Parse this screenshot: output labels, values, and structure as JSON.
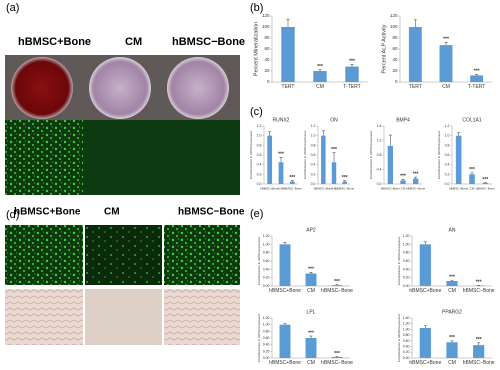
{
  "labels": {
    "a": "(a)",
    "b": "(b)",
    "c": "(c)",
    "d": "(d)",
    "e": "(e)"
  },
  "image_headers": {
    "a": [
      "hBMSC+Bone",
      "CM",
      "hBMSC−Bone"
    ],
    "d": [
      "hBMSC+Bone",
      "CM",
      "hBMSC−Bone"
    ]
  },
  "chart_data": [
    {
      "type": "bar",
      "ylabel": "Percent Mineralization",
      "categories": [
        "TERT",
        "CM",
        "T-TERT"
      ],
      "values": [
        100,
        20,
        28
      ],
      "errors": [
        14,
        2,
        4
      ],
      "sig": [
        null,
        "***",
        "***"
      ],
      "color": "#5b9bd5",
      "ylim": [
        0,
        120
      ],
      "yticks": [
        0,
        20,
        40,
        60,
        80,
        100,
        120
      ]
    },
    {
      "type": "bar",
      "ylabel": "Percent ALP Activity",
      "categories": [
        "TERT",
        "CM",
        "T-TERT"
      ],
      "values": [
        100,
        67,
        12
      ],
      "errors": [
        13,
        5,
        2
      ],
      "sig": [
        null,
        "***",
        "***"
      ],
      "color": "#5b9bd5",
      "ylim": [
        0,
        120
      ],
      "yticks": [
        0,
        20,
        40,
        60,
        80,
        100,
        120
      ]
    },
    {
      "type": "bar",
      "title": "RUNX2",
      "ylabel": "Fold Reduction in mRNA Expression",
      "categories": [
        "hBMSC+Bone",
        "CM",
        "hBMSC−Bone"
      ],
      "values": [
        1.0,
        0.45,
        0.05
      ],
      "errors": [
        0.08,
        0.1,
        0.02
      ],
      "sig": [
        null,
        "***",
        "***"
      ],
      "color": "#5b9bd5",
      "ylim": [
        0,
        1.2
      ],
      "yticks": [
        {
          "value": 0,
          "label": "0.0"
        },
        {
          "value": 0.2,
          "label": "0.2"
        },
        {
          "value": 0.4,
          "label": "0.4"
        },
        {
          "value": 0.6,
          "label": "0.6"
        },
        {
          "value": 0.8,
          "label": "0.8"
        },
        {
          "value": 1.0,
          "label": "1.0"
        },
        {
          "value": 1.2,
          "label": "1.2"
        }
      ]
    },
    {
      "type": "bar",
      "title": "ON",
      "ylabel": "Fold Reduction in mRNA Expression",
      "categories": [
        "hBMSC+Bone",
        "CM",
        "hBMSC−Bone"
      ],
      "values": [
        1.0,
        0.45,
        0.05
      ],
      "errors": [
        0.1,
        0.2,
        0.02
      ],
      "sig": [
        null,
        "***",
        "***"
      ],
      "color": "#5b9bd5",
      "ylim": [
        0,
        1.2
      ],
      "yticks": [
        {
          "value": 0,
          "label": "0.0"
        },
        {
          "value": 0.2,
          "label": "0.2"
        },
        {
          "value": 0.4,
          "label": "0.4"
        },
        {
          "value": 0.6,
          "label": "0.6"
        },
        {
          "value": 0.8,
          "label": "0.8"
        },
        {
          "value": 1.0,
          "label": "1.0"
        },
        {
          "value": 1.2,
          "label": "1.2"
        }
      ]
    },
    {
      "type": "bar",
      "title": "BMP4",
      "ylabel": "Fold Reduction in mRNA Expression",
      "categories": [
        "hBMSC+Bone",
        "CM",
        "hBMSC−Bone"
      ],
      "values": [
        1.05,
        0.1,
        0.15
      ],
      "errors": [
        0.3,
        0.03,
        0.04
      ],
      "sig": [
        null,
        "***",
        "***"
      ],
      "color": "#5b9bd5",
      "ylim": [
        0,
        1.6
      ],
      "yticks": [
        {
          "value": 0,
          "label": "0.0"
        },
        {
          "value": 0.4,
          "label": "0.4"
        },
        {
          "value": 0.8,
          "label": "0.8"
        },
        {
          "value": 1.2,
          "label": "1.2"
        },
        {
          "value": 1.6,
          "label": "1.6"
        }
      ]
    },
    {
      "type": "bar",
      "title": "COL1A1",
      "ylabel": "Fold Reduction in mRNA Expression",
      "categories": [
        "hBMSC+Bone",
        "CM",
        "hBMSC−Bone"
      ],
      "values": [
        1.0,
        0.2,
        0.02
      ],
      "errors": [
        0.06,
        0.03,
        0.01
      ],
      "sig": [
        null,
        "***",
        "***"
      ],
      "color": "#5b9bd5",
      "ylim": [
        0,
        1.2
      ],
      "yticks": [
        {
          "value": 0,
          "label": "0.0"
        },
        {
          "value": 0.2,
          "label": "0.2"
        },
        {
          "value": 0.4,
          "label": "0.4"
        },
        {
          "value": 0.6,
          "label": "0.6"
        },
        {
          "value": 0.8,
          "label": "0.8"
        },
        {
          "value": 1.0,
          "label": "1.0"
        },
        {
          "value": 1.2,
          "label": "1.2"
        }
      ]
    },
    {
      "type": "bar",
      "title": "AP2",
      "ylabel": "Fold Reduction in mRNA Expression",
      "categories": [
        "hBMSC+Bone",
        "CM",
        "hBMSC−Bone"
      ],
      "values": [
        1.0,
        0.3,
        0.02
      ],
      "errors": [
        0.05,
        0.03,
        0.01
      ],
      "sig": [
        null,
        "***",
        "***"
      ],
      "color": "#5b9bd5",
      "ylim": [
        0,
        1.2
      ],
      "yticks": [
        {
          "value": 0,
          "label": "0.00"
        },
        {
          "value": 0.2,
          "label": "0.20"
        },
        {
          "value": 0.4,
          "label": "0.40"
        },
        {
          "value": 0.6,
          "label": "0.60"
        },
        {
          "value": 0.8,
          "label": "0.80"
        },
        {
          "value": 1.0,
          "label": "1.00"
        },
        {
          "value": 1.2,
          "label": "1.20"
        }
      ]
    },
    {
      "type": "bar",
      "title": "AN",
      "ylabel": "Fold Reduction in mRNA Expression",
      "categories": [
        "hBMSC+Bone",
        "CM",
        "hBMSC−Bone"
      ],
      "values": [
        1.0,
        0.12,
        0.01
      ],
      "errors": [
        0.06,
        0.02,
        0.005
      ],
      "sig": [
        null,
        "***",
        "***"
      ],
      "color": "#5b9bd5",
      "ylim": [
        0,
        1.2
      ],
      "yticks": [
        {
          "value": 0,
          "label": "0.00"
        },
        {
          "value": 0.2,
          "label": "0.20"
        },
        {
          "value": 0.4,
          "label": "0.40"
        },
        {
          "value": 0.6,
          "label": "0.60"
        },
        {
          "value": 0.8,
          "label": "0.80"
        },
        {
          "value": 1.0,
          "label": "1.00"
        },
        {
          "value": 1.2,
          "label": "1.20"
        }
      ]
    },
    {
      "type": "bar",
      "title": "LPL",
      "ylabel": "Fold Reduction in mRNA Expression",
      "categories": [
        "hBMSC+Bone",
        "CM",
        "hBMSC−Bone"
      ],
      "values": [
        1.0,
        0.6,
        0.03
      ],
      "errors": [
        0.03,
        0.06,
        0.01
      ],
      "sig": [
        null,
        "***",
        "***"
      ],
      "color": "#5b9bd5",
      "ylim": [
        0,
        1.2
      ],
      "yticks": [
        {
          "value": 0,
          "label": "0.00"
        },
        {
          "value": 0.2,
          "label": "0.20"
        },
        {
          "value": 0.4,
          "label": "0.40"
        },
        {
          "value": 0.6,
          "label": "0.60"
        },
        {
          "value": 0.8,
          "label": "0.80"
        },
        {
          "value": 1.0,
          "label": "1.00"
        },
        {
          "value": 1.2,
          "label": "1.20"
        }
      ]
    },
    {
      "type": "bar",
      "title": "PPARG2",
      "ylabel": "Fold Reduction in mRNA Expression",
      "categories": [
        "hBMSC+Bone",
        "CM",
        "hBMSC−Bone"
      ],
      "values": [
        1.05,
        0.55,
        0.45
      ],
      "errors": [
        0.08,
        0.05,
        0.08
      ],
      "sig": [
        null,
        "***",
        "***"
      ],
      "color": "#5b9bd5",
      "ylim": [
        0,
        1.4
      ],
      "yticks": [
        {
          "value": 0,
          "label": "0.00"
        },
        {
          "value": 0.2,
          "label": "0.20"
        },
        {
          "value": 0.4,
          "label": "0.40"
        },
        {
          "value": 0.6,
          "label": "0.60"
        },
        {
          "value": 0.8,
          "label": "0.80"
        },
        {
          "value": 1.0,
          "label": "1.00"
        },
        {
          "value": 1.2,
          "label": "1.20"
        },
        {
          "value": 1.4,
          "label": "1.40"
        }
      ]
    }
  ]
}
